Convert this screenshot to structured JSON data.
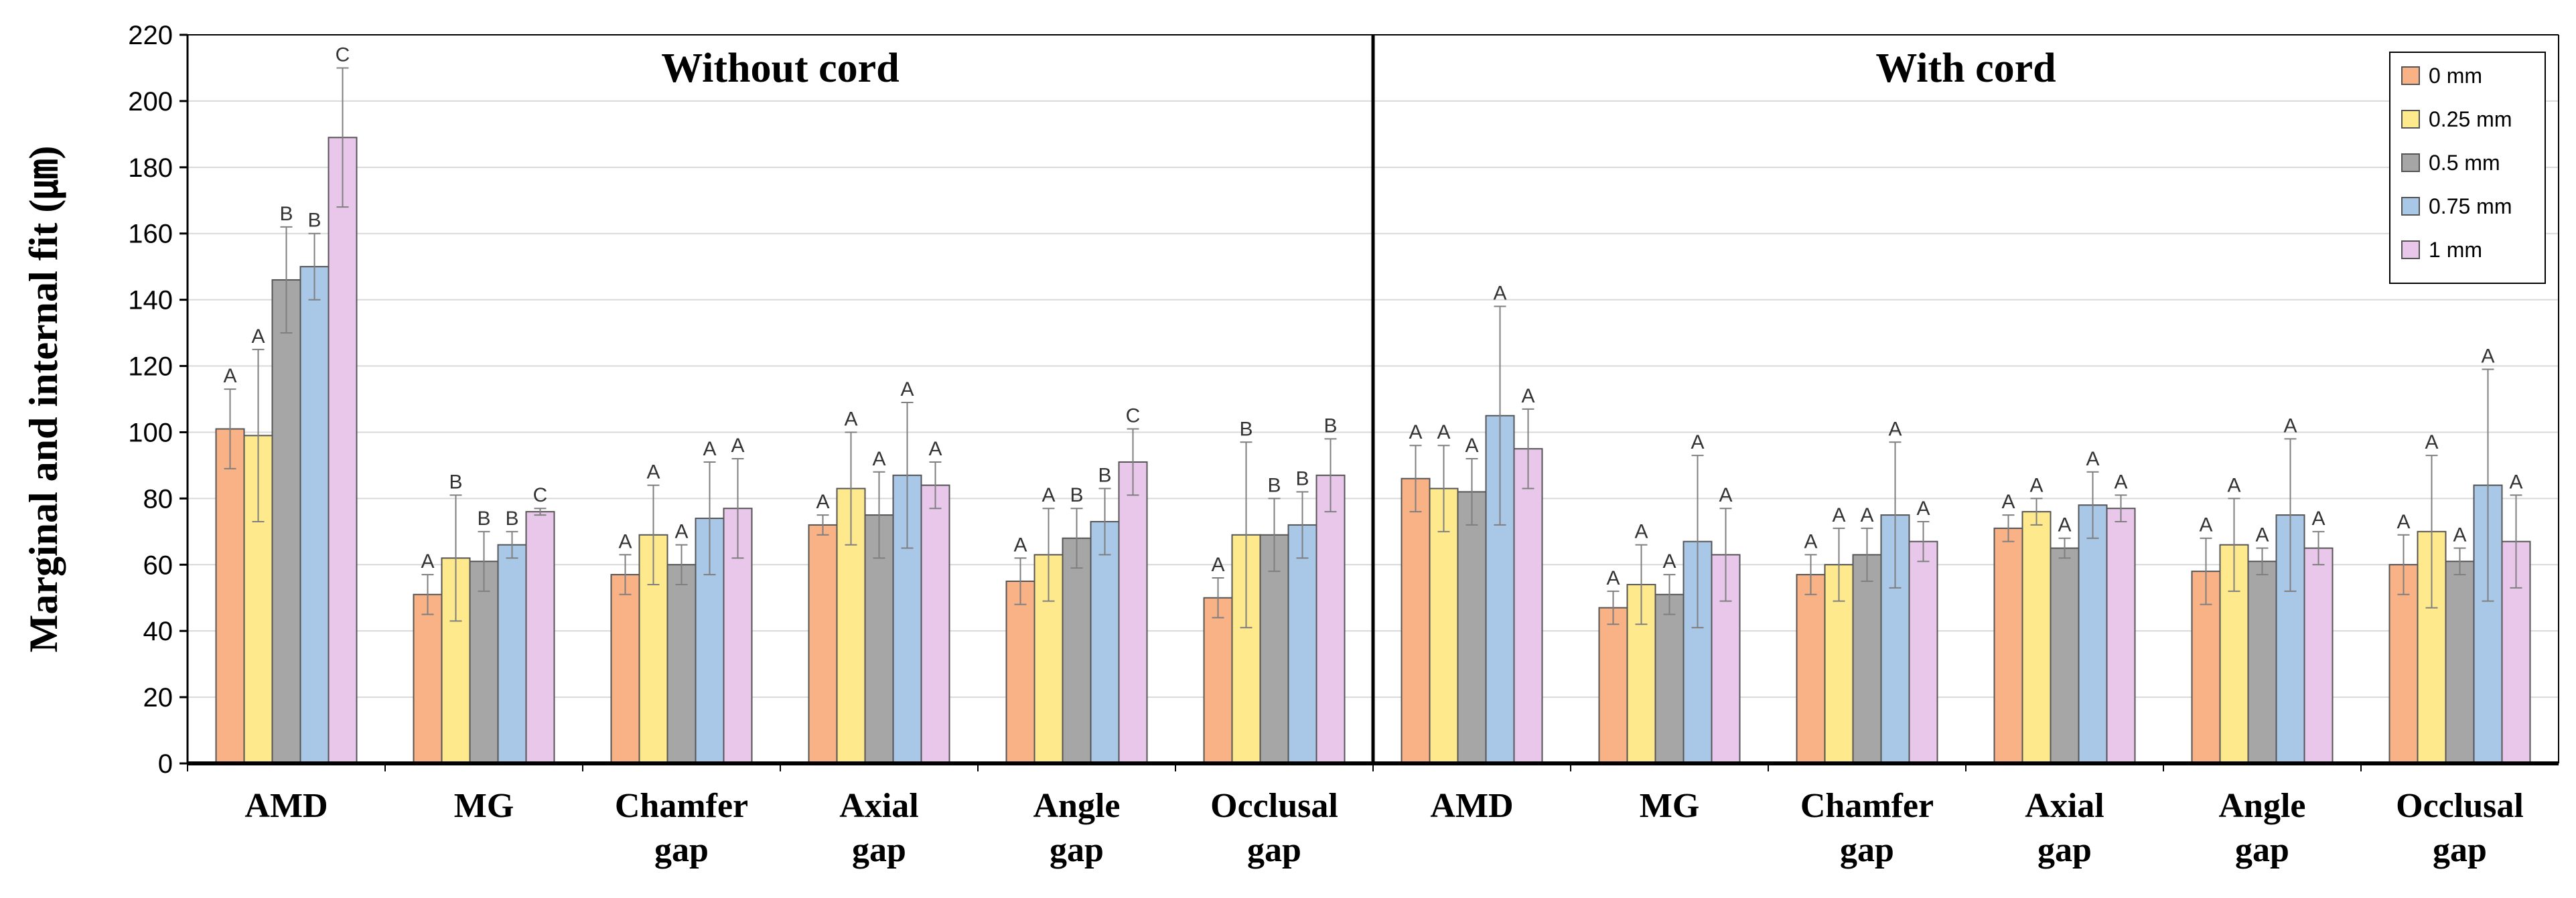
{
  "chart_data": {
    "type": "bar",
    "ylabel": "Marginal and internal fit (㎛)",
    "ylim": [
      0,
      220
    ],
    "yticks": [
      0,
      20,
      40,
      60,
      80,
      100,
      120,
      140,
      160,
      180,
      200,
      220
    ],
    "grid": true,
    "legend_position": "top-right",
    "series_names": [
      "0 mm",
      "0.25 mm",
      "0.5 mm",
      "0.75 mm",
      "1 mm"
    ],
    "colors": [
      "#F9B186",
      "#FEE98C",
      "#A6A6A6",
      "#A9C7E7",
      "#E8C7EA"
    ],
    "panels": [
      {
        "title": "Without cord",
        "groups": [
          {
            "label": [
              "AMD"
            ],
            "values": [
              101,
              99,
              146,
              150,
              189
            ],
            "errors": [
              12,
              26,
              16,
              10,
              21
            ],
            "letters": [
              "A",
              "A",
              "B",
              "B",
              "C"
            ]
          },
          {
            "label": [
              "MG"
            ],
            "values": [
              51,
              62,
              61,
              66,
              76
            ],
            "errors": [
              6,
              19,
              9,
              4,
              1
            ],
            "letters": [
              "A",
              "B",
              "B",
              "B",
              "C"
            ]
          },
          {
            "label": [
              "Chamfer",
              "gap"
            ],
            "values": [
              57,
              69,
              60,
              74,
              77
            ],
            "errors": [
              6,
              15,
              6,
              17,
              15
            ],
            "letters": [
              "A",
              "A",
              "A",
              "A",
              "A"
            ]
          },
          {
            "label": [
              "Axial",
              "gap"
            ],
            "values": [
              72,
              83,
              75,
              87,
              84
            ],
            "errors": [
              3,
              17,
              13,
              22,
              7
            ],
            "letters": [
              "A",
              "A",
              "A",
              "A",
              "A"
            ]
          },
          {
            "label": [
              "Angle",
              "gap"
            ],
            "values": [
              55,
              63,
              68,
              73,
              91
            ],
            "errors": [
              7,
              14,
              9,
              10,
              10
            ],
            "letters": [
              "A",
              "A",
              "B",
              "B",
              "C"
            ]
          },
          {
            "label": [
              "Occlusal",
              "gap"
            ],
            "values": [
              50,
              69,
              69,
              72,
              87
            ],
            "errors": [
              6,
              28,
              11,
              10,
              11
            ],
            "letters": [
              "A",
              "B",
              "B",
              "B",
              "B"
            ]
          }
        ]
      },
      {
        "title": "With cord",
        "groups": [
          {
            "label": [
              "AMD"
            ],
            "values": [
              86,
              83,
              82,
              105,
              95
            ],
            "errors": [
              10,
              13,
              10,
              33,
              12
            ],
            "letters": [
              "A",
              "A",
              "A",
              "A",
              "A"
            ]
          },
          {
            "label": [
              "MG"
            ],
            "values": [
              47,
              54,
              51,
              67,
              63
            ],
            "errors": [
              5,
              12,
              6,
              26,
              14
            ],
            "letters": [
              "A",
              "A",
              "A",
              "A",
              "A"
            ]
          },
          {
            "label": [
              "Chamfer",
              "gap"
            ],
            "values": [
              57,
              60,
              63,
              75,
              67
            ],
            "errors": [
              6,
              11,
              8,
              22,
              6
            ],
            "letters": [
              "A",
              "A",
              "A",
              "A",
              "A"
            ]
          },
          {
            "label": [
              "Axial",
              "gap"
            ],
            "values": [
              71,
              76,
              65,
              78,
              77
            ],
            "errors": [
              4,
              4,
              3,
              10,
              4
            ],
            "letters": [
              "A",
              "A",
              "A",
              "A",
              "A"
            ]
          },
          {
            "label": [
              "Angle",
              "gap"
            ],
            "values": [
              58,
              66,
              61,
              75,
              65
            ],
            "errors": [
              10,
              14,
              4,
              23,
              5
            ],
            "letters": [
              "A",
              "A",
              "A",
              "A",
              "A"
            ]
          },
          {
            "label": [
              "Occlusal",
              "gap"
            ],
            "values": [
              60,
              70,
              61,
              84,
              67
            ],
            "errors": [
              9,
              23,
              4,
              35,
              14
            ],
            "letters": [
              "A",
              "A",
              "A",
              "A",
              "A"
            ]
          }
        ]
      }
    ]
  }
}
